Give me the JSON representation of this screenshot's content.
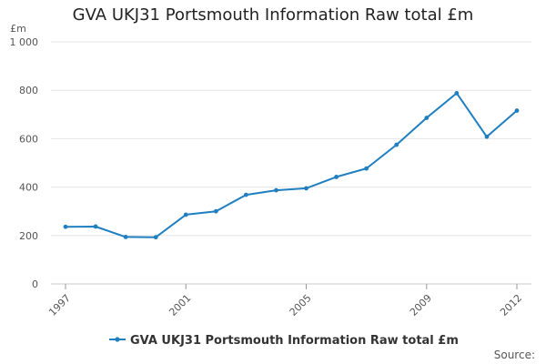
{
  "chart_data": {
    "type": "line",
    "title": "GVA UKJ31 Portsmouth Information Raw total £m",
    "ylabel": "£m",
    "xlabel": "",
    "x": [
      1997,
      1998,
      1999,
      2000,
      2001,
      2002,
      2003,
      2004,
      2005,
      2006,
      2007,
      2008,
      2009,
      2010,
      2011,
      2012
    ],
    "x_ticks": [
      "1997",
      "2001",
      "2005",
      "2009",
      "2012"
    ],
    "y_ticks": [
      "0",
      "200",
      "400",
      "600",
      "800",
      "1 000"
    ],
    "ylim": [
      0,
      1000
    ],
    "grid": true,
    "legend_position": "bottom",
    "series": [
      {
        "name": "GVA UKJ31 Portsmouth Information Raw total £m",
        "color": "#1f7fc0",
        "values": [
          236,
          237,
          194,
          193,
          286,
          300,
          368,
          387,
          395,
          442,
          477,
          575,
          686,
          788,
          608,
          716
        ]
      }
    ],
    "source_label": "Source:"
  }
}
